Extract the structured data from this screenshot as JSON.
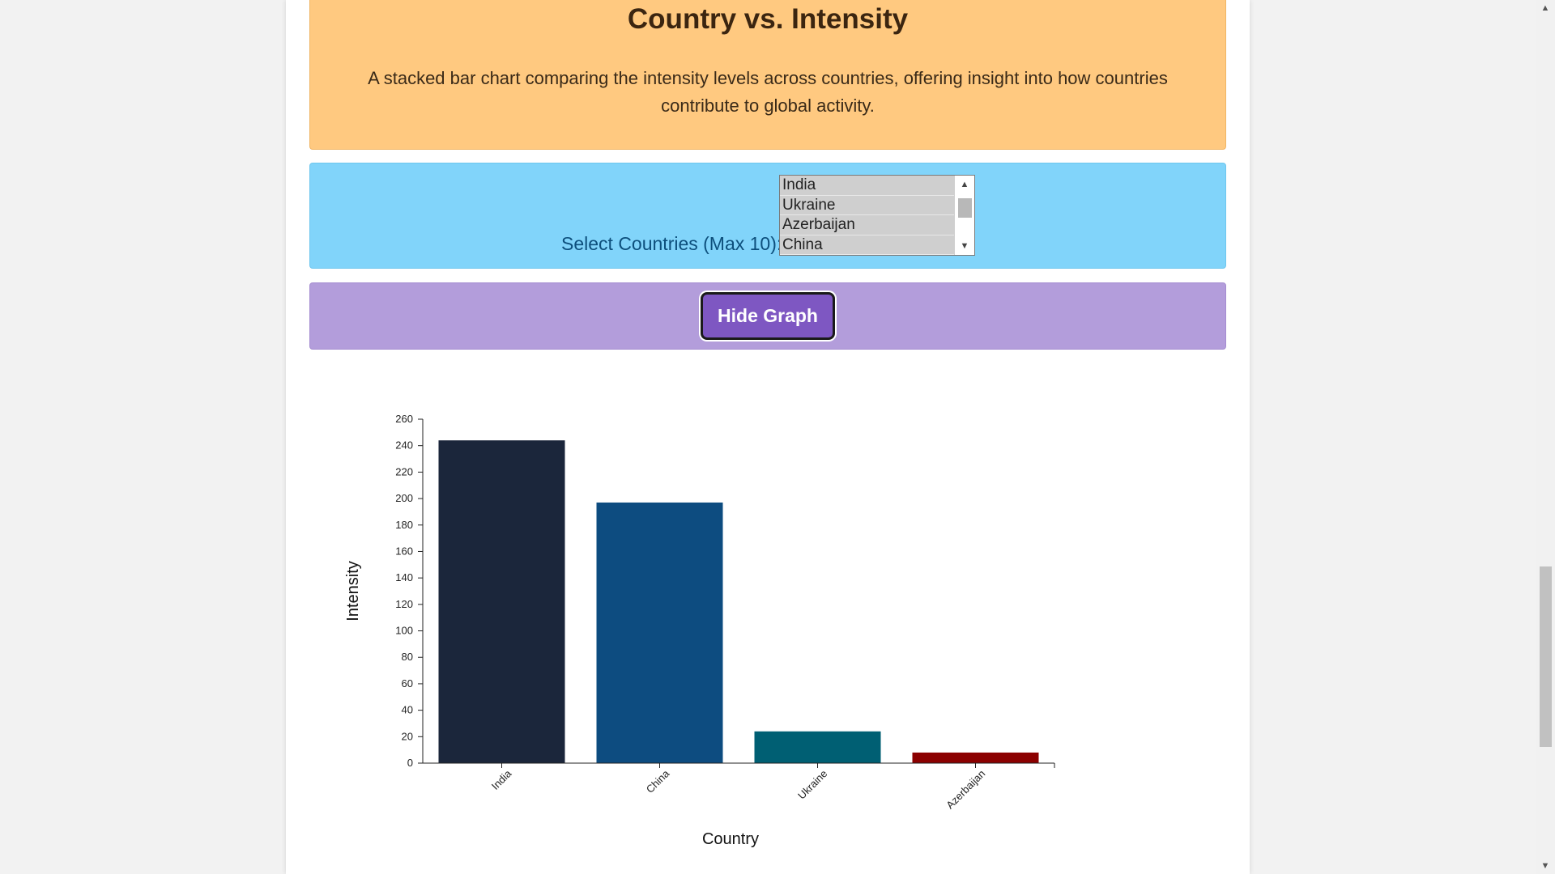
{
  "header": {
    "title": "Country vs. Intensity",
    "description": "A stacked bar chart comparing the intensity levels across countries, offering insight into how countries contribute to global activity."
  },
  "filter": {
    "label": "Select Countries (Max 10):",
    "options": [
      "India",
      "Ukraine",
      "Azerbaijan",
      "China"
    ]
  },
  "controls": {
    "hide_graph_label": "Hide Graph"
  },
  "colors": {
    "header_bg": "#ffc980",
    "filter_bg": "#81d4fa",
    "controls_bg": "#b39ddb",
    "button_bg": "#7e57c2"
  },
  "chart_data": {
    "type": "bar",
    "categories": [
      "India",
      "China",
      "Ukraine",
      "Azerbaijan"
    ],
    "values": [
      244,
      197,
      24,
      8
    ],
    "colors": [
      "#1b263b",
      "#0d4c80",
      "#005f73",
      "#8b0000"
    ],
    "xlabel": "Country",
    "ylabel": "Intensity",
    "ylim": [
      0,
      260
    ],
    "yticks": [
      0,
      20,
      40,
      60,
      80,
      100,
      120,
      140,
      160,
      180,
      200,
      220,
      240,
      260
    ],
    "grid": false,
    "legend": "none"
  }
}
